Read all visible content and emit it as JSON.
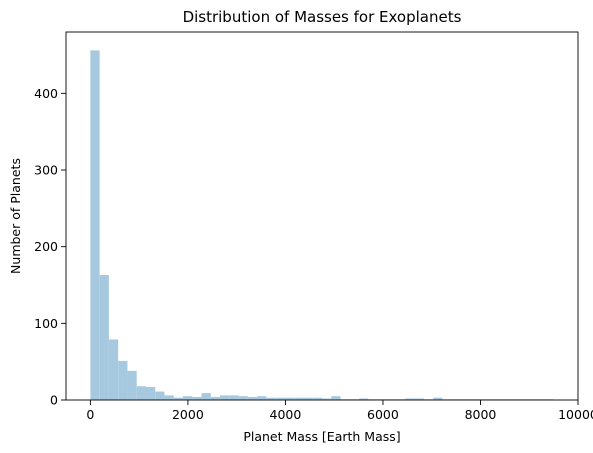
{
  "chart_data": {
    "type": "bar",
    "title": "Distribution of Masses for Exoplanets",
    "xlabel": "Planet Mass [Earth Mass]",
    "ylabel": "Number of Planets",
    "xlim": [
      -500,
      10000
    ],
    "ylim": [
      0,
      480
    ],
    "x_ticks": [
      0,
      2000,
      4000,
      6000,
      8000,
      10000
    ],
    "x_tick_labels": [
      "0",
      "2000",
      "4000",
      "6000",
      "8000",
      "10000"
    ],
    "y_ticks": [
      0,
      100,
      200,
      300,
      400
    ],
    "y_tick_labels": [
      "0",
      "100",
      "200",
      "300",
      "400"
    ],
    "bin_width": 190,
    "bin_start": 0,
    "values": [
      456,
      163,
      79,
      51,
      38,
      18,
      17,
      11,
      6,
      3,
      5,
      4,
      9,
      4,
      6,
      6,
      5,
      4,
      5,
      3,
      3,
      3,
      3,
      3,
      3,
      2,
      5,
      1,
      1,
      2,
      1,
      1,
      1,
      1,
      2,
      2,
      1,
      3,
      1,
      1,
      1,
      1,
      1,
      1,
      1,
      1,
      1,
      1,
      1,
      1
    ],
    "bar_color": "#a6c9e0",
    "grid": false,
    "legend": "none"
  }
}
